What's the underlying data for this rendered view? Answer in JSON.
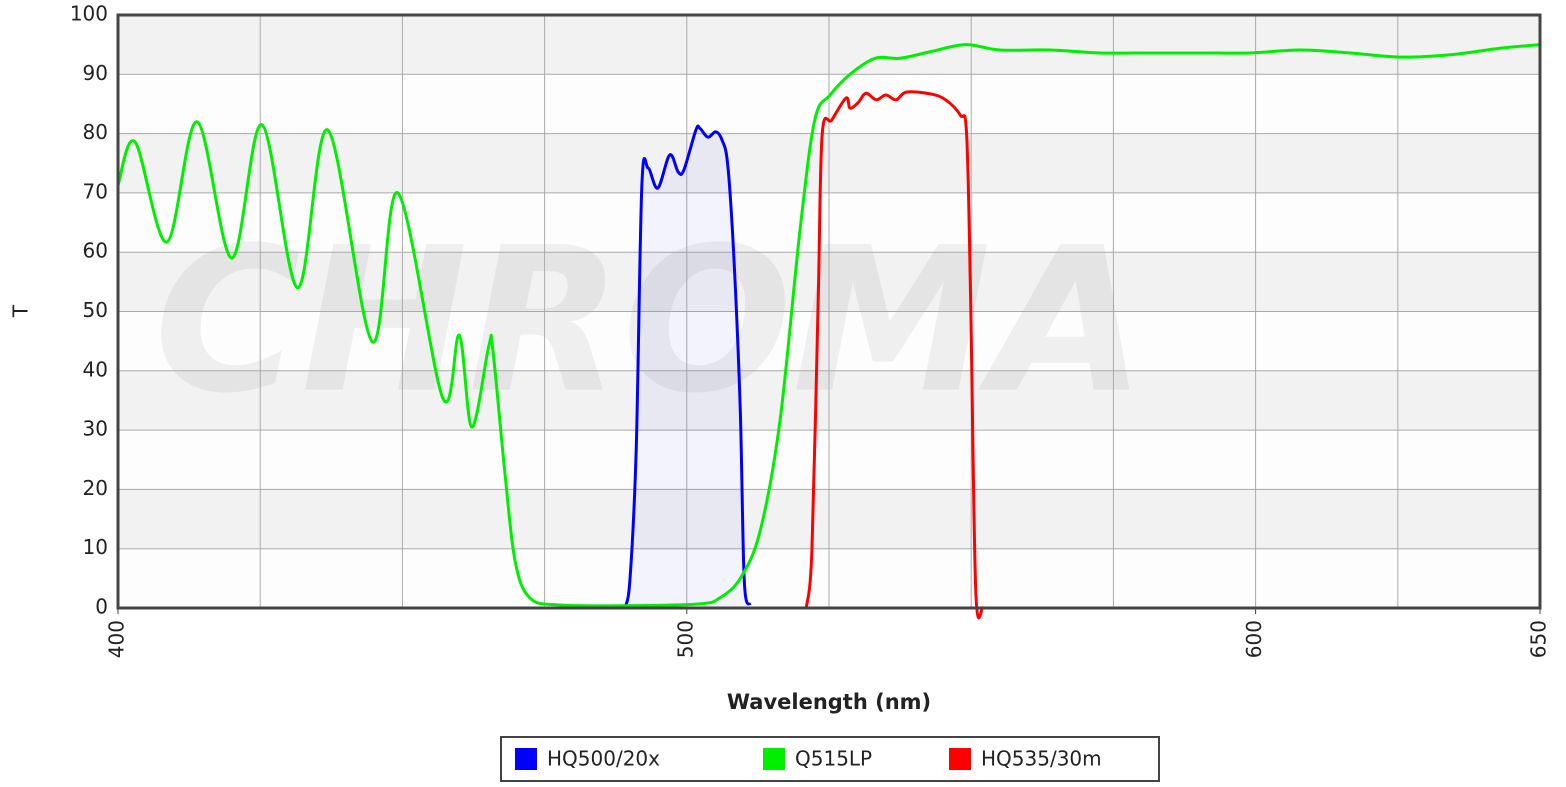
{
  "chart_data": {
    "type": "line",
    "watermark": "CHROMA",
    "xlabel": "Wavelength (nm)",
    "ylabel": "T",
    "xlim": [
      400,
      650
    ],
    "xticks": [
      400,
      500,
      600,
      650
    ],
    "x_gridlines": [
      425,
      450,
      475,
      500,
      525,
      550,
      575,
      600,
      625
    ],
    "ylim": [
      0,
      100
    ],
    "yticks": [
      0,
      10,
      20,
      30,
      40,
      50,
      60,
      70,
      80,
      90,
      100
    ],
    "grid": true,
    "legend": "bottom",
    "series": [
      {
        "name": "HQ500/20x",
        "color": "#0000ff",
        "area": true,
        "x": [
          489.1,
          490,
          491.1,
          492.1,
          493.2,
          494.9,
          497,
          498.5,
          499.5,
          501.6,
          502.3,
          503.7,
          505.1,
          506.2,
          507.2,
          508.3,
          509.4,
          510.1,
          511.1
        ],
        "values": [
          0,
          4.7,
          26.6,
          71.3,
          74.2,
          70.8,
          76.4,
          73.5,
          73.9,
          80.6,
          80.9,
          79.4,
          80.3,
          78.9,
          74.7,
          58.7,
          33.4,
          4.7,
          0.5
        ]
      },
      {
        "name": "Q515LP",
        "color": "#00ee00",
        "area": false,
        "x": [
          400,
          403,
          408.6,
          413.9,
          420,
          425.3,
          431.6,
          436.9,
          444.7,
          449.2,
          457.1,
          460,
          462.2,
          465.2,
          465.9,
          468,
          469.8,
          472.4,
          477.7,
          490,
          502.3,
          505.8,
          509.4,
          512.9,
          516.4,
          519.9,
          522.5,
          525.2,
          528.7,
          533.1,
          537.5,
          542.8,
          549,
          555,
          563.9,
          572.6,
          581.4,
          590.2,
          599,
          607.8,
          616.6,
          625.4,
          634.2,
          643,
          650
        ],
        "values": [
          71.3,
          78.6,
          61.7,
          82,
          59,
          81.5,
          54,
          80.6,
          44.9,
          70,
          35.4,
          46,
          30.5,
          44.2,
          43.5,
          23,
          8,
          1.7,
          0.5,
          0.4,
          0.7,
          1.7,
          5,
          13,
          31.7,
          63.7,
          82.3,
          86.5,
          90,
          92.7,
          92.7,
          93.8,
          95,
          94.1,
          94.1,
          93.6,
          93.6,
          93.6,
          93.6,
          94.1,
          93.6,
          92.9,
          93.3,
          94.4,
          95
        ]
      },
      {
        "name": "HQ535/30m",
        "color": "#ff0000",
        "area": false,
        "x": [
          521,
          522,
          523.1,
          523.8,
          525.5,
          528,
          528.7,
          530.1,
          531.5,
          533.3,
          535,
          536.8,
          538.6,
          542.8,
          545.5,
          548.1,
          549.2,
          549.9,
          550.8,
          552
        ],
        "values": [
          0,
          9.8,
          52,
          79.8,
          82.3,
          86,
          84.3,
          85.2,
          86.8,
          85.7,
          86.5,
          85.7,
          87,
          86.7,
          85.7,
          83.1,
          79.8,
          52,
          3,
          0
        ]
      }
    ]
  }
}
